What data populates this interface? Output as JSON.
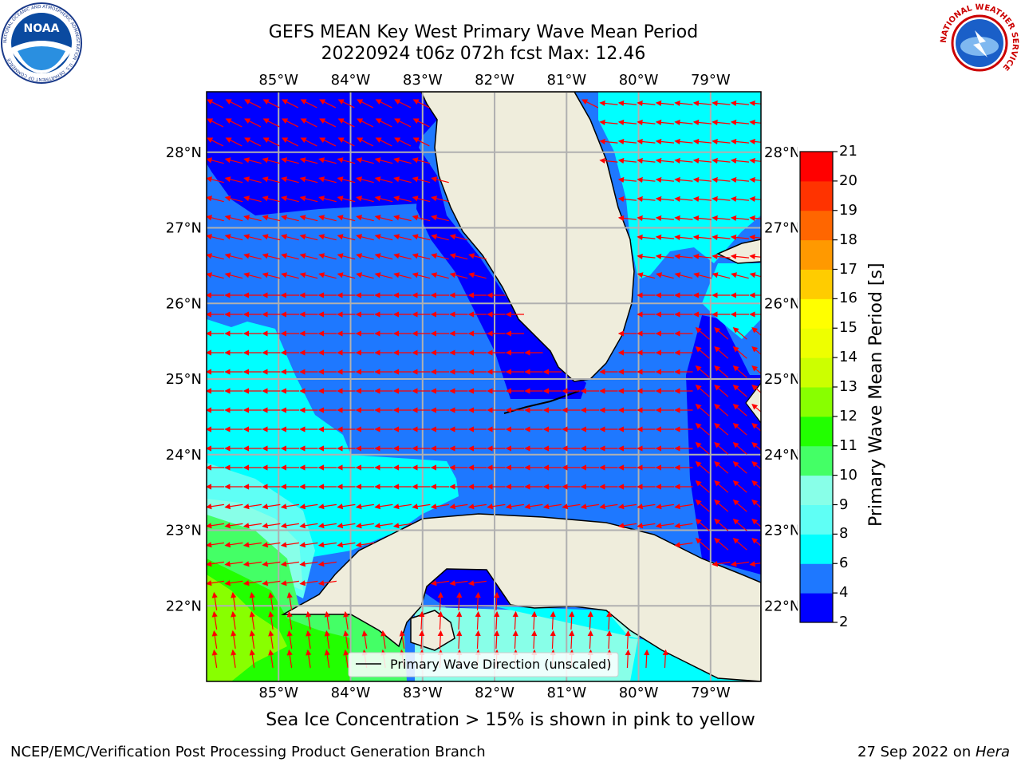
{
  "title_line1": "GEFS MEAN Key West Primary Wave Mean Period",
  "title_line2": "20220924 t06z 072h fcst   Max: 12.46",
  "logos": {
    "left": {
      "name": "noaa-logo-icon",
      "text": "NOAA",
      "ring_text": "NATIONAL OCEANIC AND ATMOSPHERIC ADMINISTRATION · U.S. DEPARTMENT OF COMMERCE"
    },
    "right": {
      "name": "nws-logo-icon",
      "ring_text": "NATIONAL WEATHER SERVICE"
    }
  },
  "map": {
    "lon_ticks": [
      "85°W",
      "84°W",
      "83°W",
      "82°W",
      "81°W",
      "80°W",
      "79°W"
    ],
    "lon_values": [
      -85,
      -84,
      -83,
      -82,
      -81,
      -80,
      -79
    ],
    "lat_ticks": [
      "28°N",
      "27°N",
      "26°N",
      "25°N",
      "24°N",
      "23°N",
      "22°N"
    ],
    "lat_values": [
      28,
      27,
      26,
      25,
      24,
      23,
      22
    ],
    "extent": {
      "lon_min": -86.0,
      "lon_max": -78.3,
      "lat_min": 21.0,
      "lat_max": 28.8
    },
    "legend_label": "Primary Wave Direction (unscaled)",
    "land_color": "#efeddc",
    "arrow_color": "#ff0000",
    "grid": true
  },
  "colorbar": {
    "label": "Primary Wave Mean Period [s]",
    "ticks": [
      "21",
      "20",
      "19",
      "18",
      "17",
      "16",
      "15",
      "14",
      "13",
      "12",
      "11",
      "10",
      "9",
      "8",
      "6",
      "4",
      "2"
    ],
    "levels": [
      2,
      4,
      6,
      8,
      9,
      10,
      11,
      12,
      13,
      14,
      15,
      16,
      17,
      18,
      19,
      20,
      21
    ],
    "colors": [
      "#0000ff",
      "#1e78ff",
      "#00ffff",
      "#5ffff5",
      "#88ffe8",
      "#44ff66",
      "#22ff00",
      "#88ff00",
      "#ccff00",
      "#eeff00",
      "#ffff00",
      "#ffcc00",
      "#ff9900",
      "#ff6600",
      "#ff3300",
      "#ff0000"
    ]
  },
  "footer": {
    "sea_ice_note": "Sea Ice Concentration > 15% is shown in pink to yellow",
    "credit": "NCEP/EMC/Verification Post Processing Product Generation Branch",
    "date": "27 Sep 2022 on ",
    "host": "Hera"
  }
}
